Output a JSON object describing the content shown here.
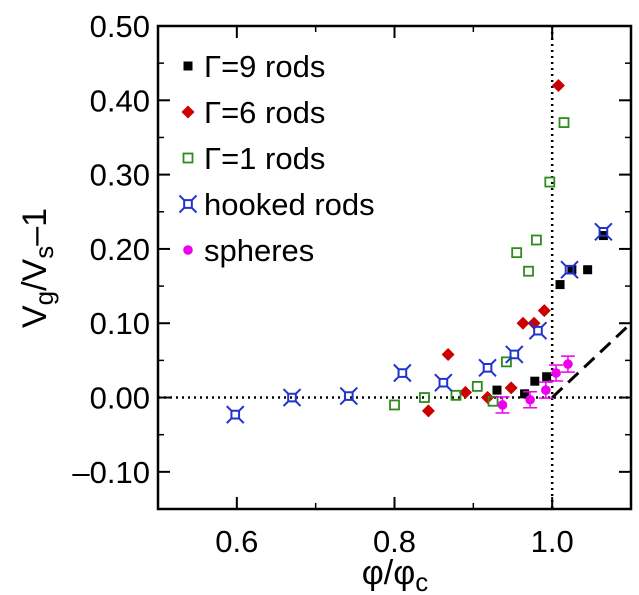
{
  "chart_data": {
    "type": "scatter",
    "title": "",
    "xlabel": "φ/φ",
    "xlabel_sub": "c",
    "ylabel": "V",
    "ylabel_sub1": "g",
    "ylabel_mid": "/V",
    "ylabel_sub2": "s",
    "ylabel_end": "–1",
    "xlim": [
      0.5,
      1.1
    ],
    "ylim": [
      -0.15,
      0.5
    ],
    "xticks": [
      0.6,
      0.8,
      1.0
    ],
    "xtick_labels": [
      "0.6",
      "0.8",
      "1.0"
    ],
    "yticks": [
      -0.1,
      0.0,
      0.1,
      0.2,
      0.3,
      0.4,
      0.5
    ],
    "ytick_labels": [
      "–0.10",
      "0.00",
      "0.10",
      "0.20",
      "0.30",
      "0.40",
      "0.50"
    ],
    "grid": false,
    "legend_position": "top-right",
    "reference_lines": [
      {
        "kind": "horizontal-dotted",
        "y": 0.0
      },
      {
        "kind": "vertical-dotted",
        "x": 1.0
      },
      {
        "kind": "dashed-linear",
        "x": [
          1.0,
          1.1
        ],
        "y": [
          0.0,
          0.1
        ]
      }
    ],
    "series": [
      {
        "name": "Γ=9 rods",
        "marker": "square",
        "color": "#000000",
        "x": [
          0.93,
          0.965,
          0.978,
          0.993,
          1.01,
          1.025,
          1.045,
          1.065
        ],
        "y": [
          0.01,
          0.005,
          0.022,
          0.028,
          0.152,
          0.172,
          0.172,
          0.218
        ]
      },
      {
        "name": "Γ=6 rods",
        "marker": "diamond",
        "color": "#cc0000",
        "x": [
          0.843,
          0.868,
          0.89,
          0.918,
          0.948,
          0.963,
          0.977,
          0.99,
          1.008
        ],
        "y": [
          -0.018,
          0.058,
          0.007,
          0.0,
          0.013,
          0.1,
          0.1,
          0.117,
          0.42
        ]
      },
      {
        "name": "Γ=1 rods",
        "marker": "open-square",
        "color": "#2e8b1e",
        "x": [
          0.8,
          0.838,
          0.878,
          0.905,
          0.925,
          0.942,
          0.955,
          0.97,
          0.98,
          0.997,
          1.015
        ],
        "y": [
          -0.01,
          0.0,
          0.003,
          0.015,
          -0.005,
          0.048,
          0.195,
          0.17,
          0.212,
          0.29,
          0.37
        ]
      },
      {
        "name": "hooked rods",
        "marker": "hooked",
        "color": "#2233cc",
        "x": [
          0.598,
          0.67,
          0.742,
          0.81,
          0.862,
          0.918,
          0.952,
          0.982,
          1.022,
          1.065
        ],
        "y": [
          -0.023,
          0.0,
          0.002,
          0.033,
          0.02,
          0.04,
          0.058,
          0.09,
          0.172,
          0.223
        ]
      },
      {
        "name": "spheres",
        "marker": "circle",
        "color": "#ee00ee",
        "x": [
          0.937,
          0.972,
          0.992,
          1.005,
          1.02
        ],
        "y": [
          -0.01,
          -0.003,
          0.01,
          0.033,
          0.045
        ]
      }
    ]
  }
}
